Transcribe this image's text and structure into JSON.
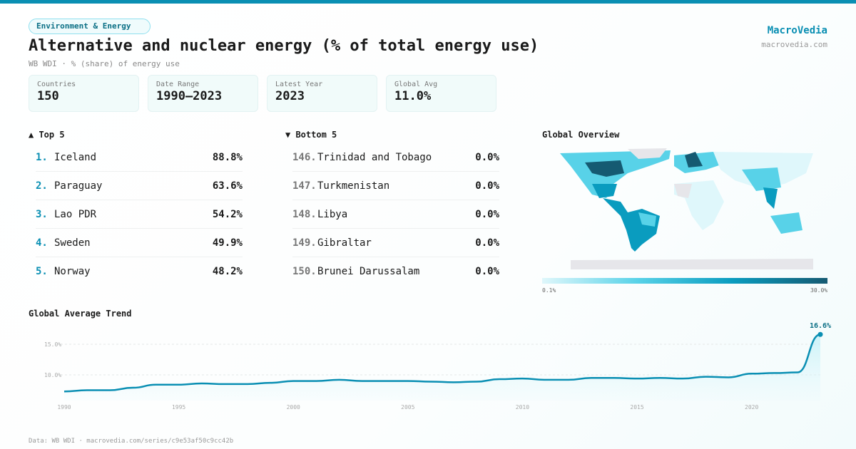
{
  "header": {
    "category": "Environment & Energy",
    "title": "Alternative and nuclear energy (% of total energy use)",
    "subtitle": "WB WDI · % (share) of energy use",
    "brand": "MacroVedia",
    "brand_url": "macrovedia.com"
  },
  "stats": [
    {
      "label": "Countries",
      "value": "150"
    },
    {
      "label": "Date Range",
      "value": "1990–2023"
    },
    {
      "label": "Latest Year",
      "value": "2023"
    },
    {
      "label": "Global Avg",
      "value": "11.0%"
    }
  ],
  "top5": {
    "title": "▲ Top 5",
    "items": [
      {
        "rank": "1.",
        "name": "Iceland",
        "value": "88.8%"
      },
      {
        "rank": "2.",
        "name": "Paraguay",
        "value": "63.6%"
      },
      {
        "rank": "3.",
        "name": "Lao PDR",
        "value": "54.2%"
      },
      {
        "rank": "4.",
        "name": "Sweden",
        "value": "49.9%"
      },
      {
        "rank": "5.",
        "name": "Norway",
        "value": "48.2%"
      }
    ]
  },
  "bottom5": {
    "title": "▼ Bottom 5",
    "items": [
      {
        "rank": "146.",
        "name": "Trinidad and Tobago",
        "value": "0.0%"
      },
      {
        "rank": "147.",
        "name": "Turkmenistan",
        "value": "0.0%"
      },
      {
        "rank": "148.",
        "name": "Libya",
        "value": "0.0%"
      },
      {
        "rank": "149.",
        "name": "Gibraltar",
        "value": "0.0%"
      },
      {
        "rank": "150.",
        "name": "Brunei Darussalam",
        "value": "0.0%"
      }
    ]
  },
  "map": {
    "title": "Global Overview",
    "legend_min": "0.1%",
    "legend_max": "30.0%",
    "colors": [
      "#dff7fb",
      "#58d2e8",
      "#0a9cbf",
      "#155a72"
    ],
    "no_data": "#e6e6ea"
  },
  "chart_data": {
    "type": "area",
    "title": "Global Average Trend",
    "x": [
      1990,
      1991,
      1992,
      1993,
      1994,
      1995,
      1996,
      1997,
      1998,
      1999,
      2000,
      2001,
      2002,
      2003,
      2004,
      2005,
      2006,
      2007,
      2008,
      2009,
      2010,
      2011,
      2012,
      2013,
      2014,
      2015,
      2016,
      2017,
      2018,
      2019,
      2020,
      2021,
      2022,
      2023
    ],
    "values": [
      7.3,
      7.5,
      7.5,
      7.9,
      8.4,
      8.4,
      8.6,
      8.5,
      8.5,
      8.7,
      9.0,
      9.0,
      9.2,
      9.0,
      9.0,
      9.0,
      8.9,
      8.8,
      8.9,
      9.3,
      9.4,
      9.2,
      9.2,
      9.5,
      9.5,
      9.4,
      9.5,
      9.4,
      9.7,
      9.6,
      10.2,
      10.3,
      10.4,
      16.6
    ],
    "x_ticks": [
      "1990",
      "1995",
      "2000",
      "2005",
      "2010",
      "2015",
      "2020"
    ],
    "y_ticks": [
      "10.0%",
      "15.0%"
    ],
    "ylim": [
      5.5,
      17
    ],
    "last_label": "16.6%",
    "grid": true,
    "color": "#0a8fb3"
  },
  "footer": "Data: WB WDI · macrovedia.com/series/c9e53af50c9cc42b"
}
